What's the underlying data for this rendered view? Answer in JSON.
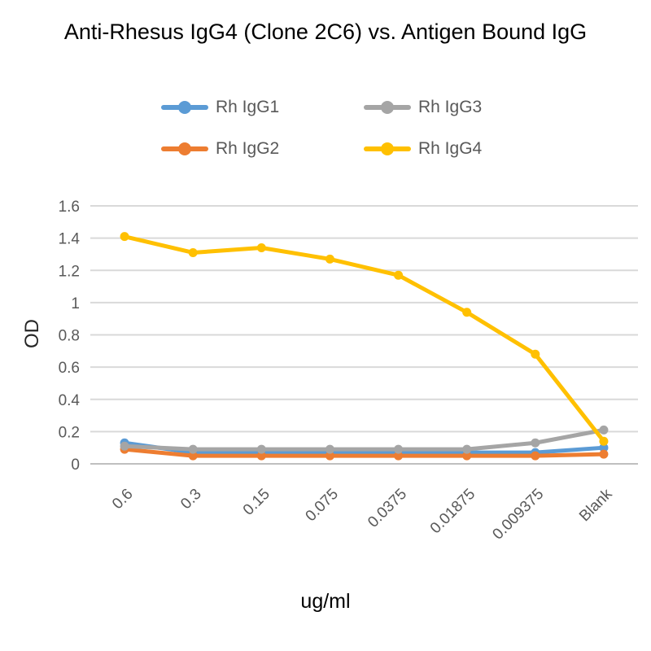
{
  "title": "Anti-Rhesus IgG4 (Clone 2C6) vs. Antigen Bound IgG",
  "axes": {
    "ylabel": "OD",
    "xlabel": "ug/ml"
  },
  "colors": {
    "gridline": "#D9D9D9",
    "axis_line": "#BFBFBF",
    "tick_text": "#595959",
    "legend_text": "#595959",
    "title_text": "#000000"
  },
  "chart_data": {
    "type": "line",
    "title": "Anti-Rhesus IgG4 (Clone 2C6) vs. Antigen Bound IgG",
    "xlabel": "ug/ml",
    "ylabel": "OD",
    "ylim": [
      0,
      1.6
    ],
    "ytick_labels": [
      "0",
      "0.2",
      "0.4",
      "0.6",
      "0.8",
      "1",
      "1.2",
      "1.4",
      "1.6"
    ],
    "grid": true,
    "legend_position": "top",
    "marker": "circle",
    "categories": [
      "0.6",
      "0.3",
      "0.15",
      "0.075",
      "0.0375",
      "0.01875",
      "0.009375",
      "Blank"
    ],
    "series": [
      {
        "name": "Rh IgG1",
        "color": "#5B9BD5",
        "values": [
          0.13,
          0.07,
          0.07,
          0.07,
          0.07,
          0.07,
          0.07,
          0.1
        ]
      },
      {
        "name": "Rh IgG2",
        "color": "#ED7D31",
        "values": [
          0.09,
          0.05,
          0.05,
          0.05,
          0.05,
          0.05,
          0.05,
          0.06
        ]
      },
      {
        "name": "Rh IgG3",
        "color": "#A5A5A5",
        "values": [
          0.11,
          0.09,
          0.09,
          0.09,
          0.09,
          0.09,
          0.13,
          0.21
        ]
      },
      {
        "name": "Rh IgG4",
        "color": "#FFC000",
        "values": [
          1.41,
          1.31,
          1.34,
          1.27,
          1.17,
          0.94,
          0.68,
          0.14
        ]
      }
    ]
  }
}
